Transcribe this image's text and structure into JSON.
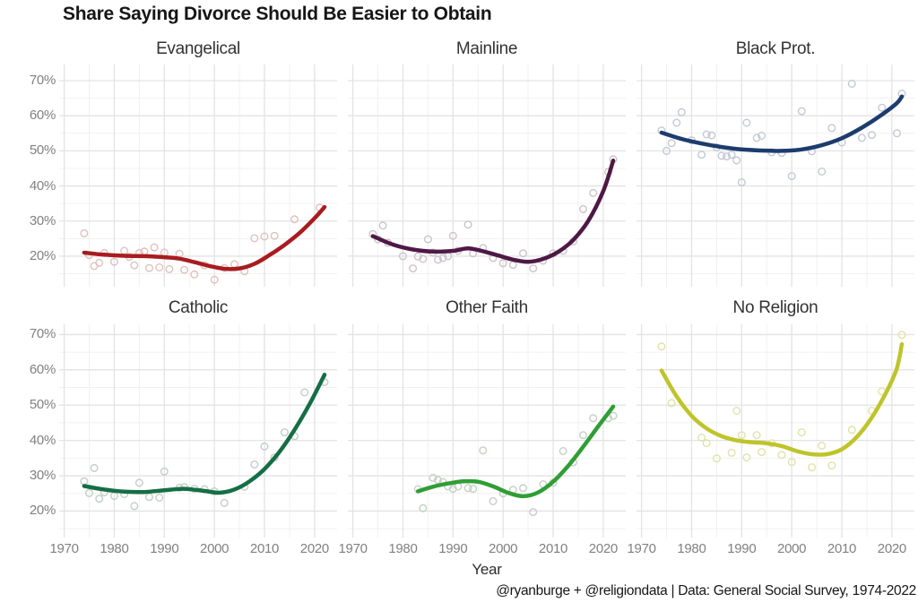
{
  "chart_data": {
    "type": "scatter",
    "subtype": "faceted scatter with smoothed trend lines",
    "title": "Share Saying Divorce Should Be Easier to Obtain",
    "xlabel": "Year",
    "caption": "@ryanburge + @religiondata | Data: General Social Survey, 1974-2022",
    "legend": "none",
    "grid": "major and minor, light gray on white",
    "xlim": [
      1969,
      2024.5
    ],
    "ylim_percent": [
      12,
      74
    ],
    "x_ticks": {
      "values": [
        1970,
        1980,
        1990,
        2000,
        2010,
        2020
      ],
      "labels": [
        "1970",
        "1980",
        "1990",
        "2000",
        "2010",
        "2020"
      ]
    },
    "y_ticks": {
      "values": [
        70,
        60,
        50,
        40,
        30,
        20
      ],
      "labels": [
        "70%",
        "60%",
        "50%",
        "40%",
        "30%",
        "20%"
      ]
    },
    "minor_x": [
      1975,
      1985,
      1995,
      2005,
      2015
    ],
    "minor_y": [
      15,
      25,
      35,
      45,
      55,
      65
    ],
    "grid_major_color": "#e3e3e3",
    "grid_minor_color": "#f1f1f1",
    "facets": [
      {
        "label": "Evangelical",
        "line_color": "#a81c1f",
        "point_color": "#dfc0c0",
        "points": {
          "years": [
            1974,
            1975,
            1976,
            1977,
            1978,
            1980,
            1982,
            1983,
            1984,
            1985,
            1986,
            1987,
            1988,
            1989,
            1990,
            1991,
            1993,
            1994,
            1996,
            1998,
            2000,
            2002,
            2004,
            2006,
            2008,
            2010,
            2012,
            2016,
            2021
          ],
          "values": [
            26.5,
            20.3,
            17.2,
            18.1,
            20.9,
            18.4,
            21.5,
            19.8,
            17.4,
            20.9,
            21.3,
            16.6,
            22.5,
            16.8,
            21.0,
            16.3,
            20.7,
            16.1,
            14.8,
            17.4,
            13.3,
            16.6,
            17.7,
            15.7,
            25.1,
            25.6,
            25.8,
            30.5,
            33.8
          ]
        },
        "trend": {
          "years": [
            1974,
            1978,
            1982,
            1986,
            1990,
            1993,
            1996,
            1999,
            2002,
            2005,
            2008,
            2011,
            2014,
            2017,
            2020,
            2022
          ],
          "values": [
            21.0,
            20.4,
            20.1,
            20.0,
            19.7,
            19.3,
            18.3,
            17.2,
            16.4,
            16.5,
            17.8,
            20.3,
            23.2,
            26.6,
            30.8,
            34.0
          ]
        }
      },
      {
        "label": "Mainline",
        "line_color": "#4f1845",
        "point_color": "#cbc3c9",
        "points": {
          "years": [
            1974,
            1975,
            1976,
            1977,
            1980,
            1982,
            1983,
            1984,
            1985,
            1986,
            1987,
            1988,
            1989,
            1990,
            1991,
            1993,
            1994,
            1996,
            1998,
            2000,
            2002,
            2004,
            2006,
            2008,
            2010,
            2012,
            2014,
            2016,
            2018,
            2021,
            2022
          ],
          "values": [
            26.3,
            24.8,
            28.7,
            23.8,
            20.0,
            16.5,
            19.9,
            19.2,
            24.8,
            21.0,
            19.0,
            19.5,
            20.0,
            25.8,
            21.5,
            29.0,
            20.8,
            22.3,
            19.5,
            18.0,
            17.5,
            20.8,
            16.5,
            18.7,
            20.8,
            21.5,
            24.2,
            33.4,
            38.0,
            44.0,
            47.6
          ]
        },
        "trend": {
          "years": [
            1974,
            1978,
            1982,
            1986,
            1990,
            1993,
            1996,
            1999,
            2002,
            2005,
            2008,
            2011,
            2014,
            2017,
            2020,
            2022
          ],
          "values": [
            25.7,
            23.3,
            21.9,
            21.3,
            21.5,
            22.2,
            21.4,
            20.2,
            19.0,
            18.4,
            19.2,
            21.2,
            24.6,
            30.0,
            38.5,
            47.2
          ]
        }
      },
      {
        "label": "Black Prot.",
        "line_color": "#1d3c6e",
        "point_color": "#c3c9d3",
        "points": {
          "years": [
            1974,
            1975,
            1976,
            1977,
            1978,
            1980,
            1982,
            1983,
            1984,
            1985,
            1986,
            1987,
            1988,
            1989,
            1990,
            1991,
            1993,
            1994,
            1996,
            1998,
            2000,
            2002,
            2004,
            2006,
            2008,
            2010,
            2012,
            2014,
            2016,
            2018,
            2021,
            2022
          ],
          "values": [
            55.8,
            50.0,
            52.2,
            58.0,
            61.0,
            53.0,
            48.9,
            54.7,
            54.4,
            51.0,
            48.6,
            48.4,
            48.9,
            47.3,
            41.0,
            58.0,
            53.7,
            54.3,
            49.6,
            49.4,
            42.8,
            61.3,
            49.9,
            44.1,
            56.5,
            52.4,
            69.1,
            53.7,
            54.5,
            62.3,
            55.0,
            66.3
          ]
        },
        "trend": {
          "years": [
            1974,
            1978,
            1982,
            1986,
            1990,
            1994,
            1998,
            2002,
            2006,
            2010,
            2014,
            2018,
            2021,
            2022
          ],
          "values": [
            55.2,
            53.4,
            52.1,
            51.1,
            50.4,
            50.1,
            50.0,
            50.4,
            51.6,
            53.6,
            56.6,
            60.3,
            63.6,
            65.5
          ]
        }
      },
      {
        "label": "Catholic",
        "line_color": "#156e46",
        "point_color": "#c3cdc6",
        "points": {
          "years": [
            1974,
            1975,
            1976,
            1977,
            1978,
            1980,
            1982,
            1984,
            1985,
            1987,
            1989,
            1990,
            1993,
            1994,
            1996,
            1998,
            2000,
            2002,
            2006,
            2008,
            2010,
            2012,
            2014,
            2016,
            2018,
            2022
          ],
          "values": [
            28.4,
            25.1,
            32.2,
            23.5,
            25.3,
            24.3,
            24.8,
            21.4,
            28.0,
            24.0,
            23.8,
            31.2,
            26.6,
            26.8,
            26.3,
            26.2,
            25.6,
            22.3,
            26.9,
            33.2,
            38.3,
            35.2,
            42.3,
            41.2,
            53.6,
            56.5
          ]
        },
        "trend": {
          "years": [
            1974,
            1978,
            1982,
            1986,
            1990,
            1994,
            1998,
            2001,
            2004,
            2007,
            2010,
            2013,
            2016,
            2019,
            2022
          ],
          "values": [
            27.1,
            26.1,
            25.5,
            25.4,
            25.9,
            26.3,
            25.7,
            25.2,
            26.1,
            28.4,
            31.9,
            36.8,
            43.0,
            50.3,
            58.6
          ]
        }
      },
      {
        "label": "Other Faith",
        "line_color": "#2f9e35",
        "point_color": "#c6cfc5",
        "points": {
          "years": [
            1983,
            1984,
            1986,
            1987,
            1988,
            1989,
            1990,
            1991,
            1993,
            1994,
            1996,
            1998,
            2000,
            2002,
            2004,
            2006,
            2008,
            2010,
            2012,
            2014,
            2016,
            2018,
            2021,
            2022
          ],
          "values": [
            26.2,
            20.8,
            29.4,
            28.8,
            28.2,
            27.0,
            26.3,
            27.0,
            26.5,
            26.3,
            37.2,
            22.8,
            25.0,
            26.0,
            26.5,
            19.7,
            27.6,
            28.0,
            37.0,
            33.8,
            41.5,
            46.3,
            46.3,
            47.0
          ]
        },
        "trend": {
          "years": [
            1983,
            1986,
            1989,
            1992,
            1995,
            1998,
            2001,
            2004,
            2007,
            2010,
            2013,
            2016,
            2019,
            2022
          ],
          "values": [
            25.6,
            26.9,
            27.8,
            28.4,
            28.3,
            27.0,
            25.2,
            24.2,
            25.3,
            28.3,
            32.8,
            38.2,
            44.0,
            49.6
          ]
        }
      },
      {
        "label": "No Religion",
        "line_color": "#bec42a",
        "point_color": "#e0e2ab",
        "points": {
          "years": [
            1974,
            1976,
            1982,
            1983,
            1985,
            1988,
            1989,
            1990,
            1991,
            1993,
            1994,
            1996,
            1998,
            2000,
            2002,
            2004,
            2006,
            2008,
            2012,
            2016,
            2018,
            2022
          ],
          "values": [
            66.6,
            50.6,
            40.8,
            39.2,
            34.9,
            36.5,
            48.4,
            41.5,
            35.2,
            41.5,
            36.7,
            39.2,
            35.9,
            33.9,
            42.3,
            32.4,
            38.5,
            32.9,
            43.0,
            48.4,
            53.9,
            69.9
          ]
        },
        "trend": {
          "years": [
            1974,
            1977,
            1980,
            1983,
            1986,
            1989,
            1992,
            1995,
            1998,
            2001,
            2004,
            2007,
            2010,
            2013,
            2016,
            2019,
            2021,
            2022
          ],
          "values": [
            59.8,
            52.5,
            47.0,
            43.4,
            41.2,
            40.0,
            39.5,
            39.2,
            38.4,
            37.0,
            36.1,
            36.1,
            37.5,
            41.0,
            46.5,
            54.0,
            60.5,
            67.3
          ]
        }
      }
    ]
  }
}
